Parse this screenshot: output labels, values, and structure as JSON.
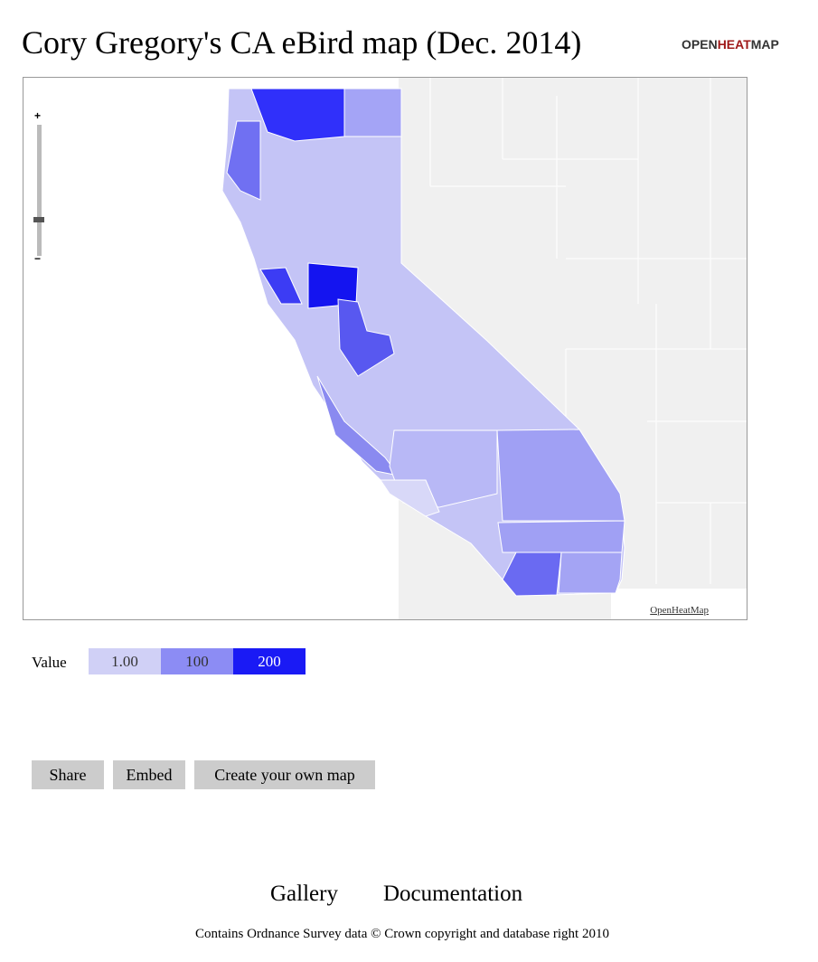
{
  "header": {
    "title": "Cory Gregory's CA eBird map (Dec. 2014)",
    "logo": {
      "open": "OPEN",
      "heat": "HEAT",
      "map": "MAP"
    }
  },
  "map": {
    "zoom_in": "+",
    "zoom_out": "−",
    "attribution": "OpenHeatMap"
  },
  "legend": {
    "label": "Value",
    "items": [
      {
        "value": 1,
        "label": "1.00",
        "color": "#d0d0f6"
      },
      {
        "value": 100,
        "color": "#8c8cf4"
      },
      {
        "value": 200,
        "color": "#1a1af5"
      }
    ]
  },
  "buttons": [
    "Share",
    "Embed",
    "Create your own map"
  ],
  "footer": {
    "links": [
      "Gallery",
      "Documentation"
    ],
    "notice": "Contains Ordnance Survey data © Crown copyright and database right 2010"
  }
}
